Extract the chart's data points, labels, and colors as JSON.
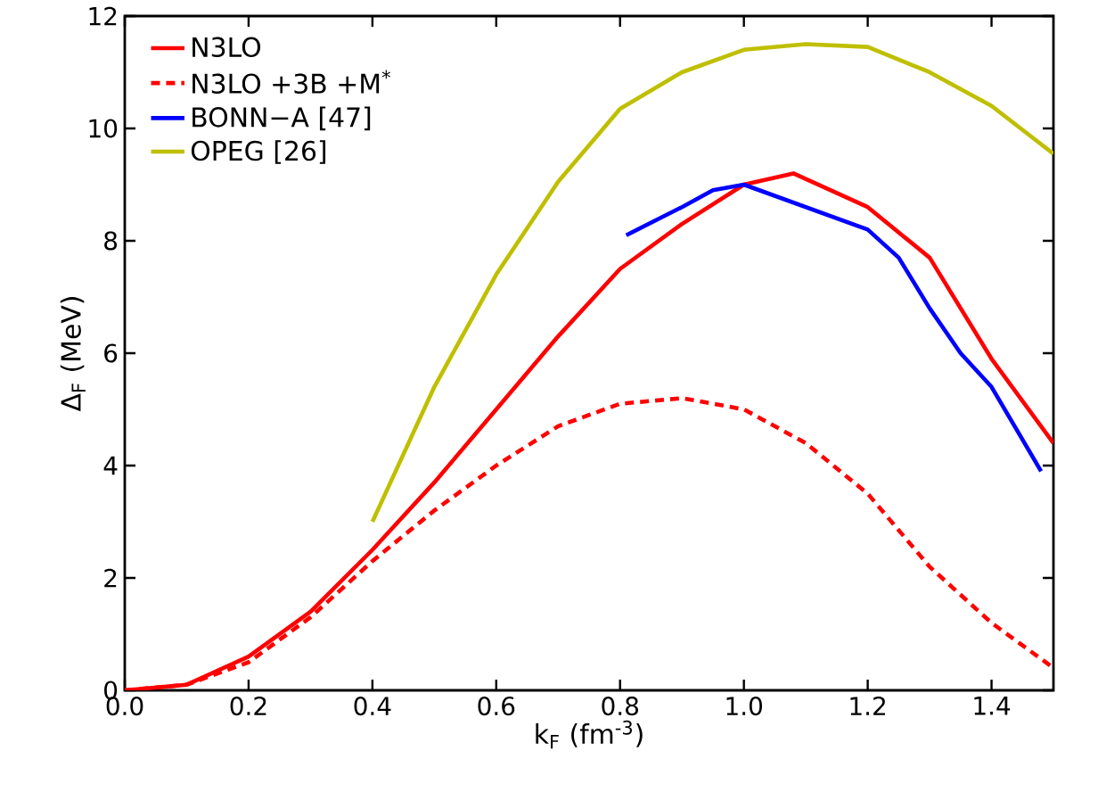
{
  "chart_data": {
    "type": "line",
    "xlabel": "k$_{F}$   (fm$^{-3}$)",
    "ylabel": "Δ$_{F}$   (MeV)",
    "xlim": [
      0,
      1.5
    ],
    "ylim": [
      0,
      12
    ],
    "xticks": [
      {
        "value": 0,
        "label": "0.0"
      },
      0.2,
      0.4,
      0.6,
      0.8,
      {
        "value": 1,
        "label": "1.0"
      },
      1.2,
      1.4
    ],
    "yticks": [
      0,
      2,
      4,
      6,
      8,
      10,
      12
    ],
    "legend": "top left",
    "grid": false,
    "marker": "none",
    "series": [
      {
        "name": "N3LO",
        "color": "#ff0000",
        "line_style": "solid",
        "x": [
          0,
          0.1,
          0.2,
          0.3,
          0.4,
          0.5,
          0.6,
          0.7,
          0.8,
          0.9,
          1.0,
          1.08,
          1.2,
          1.3,
          1.4,
          1.5
        ],
        "values": [
          0,
          0.1,
          0.6,
          1.4,
          2.5,
          3.7,
          5.0,
          6.3,
          7.5,
          8.3,
          9.0,
          9.2,
          8.6,
          7.7,
          5.9,
          4.4
        ]
      },
      {
        "name": "N3LO +3B +M$^{*}$",
        "color": "#ff0000",
        "line_style": "dashed",
        "x": [
          0,
          0.1,
          0.2,
          0.3,
          0.4,
          0.5,
          0.6,
          0.7,
          0.8,
          0.9,
          1.0,
          1.1,
          1.2,
          1.3,
          1.4,
          1.5
        ],
        "values": [
          0,
          0.1,
          0.5,
          1.3,
          2.3,
          3.2,
          4.0,
          4.7,
          5.1,
          5.2,
          5.0,
          4.4,
          3.5,
          2.2,
          1.2,
          0.4
        ]
      },
      {
        "name": "BONN−A [47]",
        "color": "#0000ff",
        "line_style": "solid",
        "x": [
          0.81,
          0.9,
          0.95,
          1.0,
          1.1,
          1.2,
          1.25,
          1.3,
          1.35,
          1.4,
          1.48
        ],
        "values": [
          8.1,
          8.6,
          8.9,
          9.0,
          8.6,
          8.2,
          7.7,
          6.8,
          6.0,
          5.4,
          3.9
        ]
      },
      {
        "name": "OPEG [26]",
        "color": "#bfbf00",
        "line_style": "solid",
        "x": [
          0.4,
          0.5,
          0.6,
          0.7,
          0.8,
          0.9,
          1.0,
          1.1,
          1.2,
          1.3,
          1.4,
          1.5
        ],
        "values": [
          3.0,
          5.4,
          7.4,
          9.05,
          10.35,
          11.0,
          11.4,
          11.5,
          11.45,
          11.0,
          10.4,
          9.55
        ]
      }
    ]
  }
}
